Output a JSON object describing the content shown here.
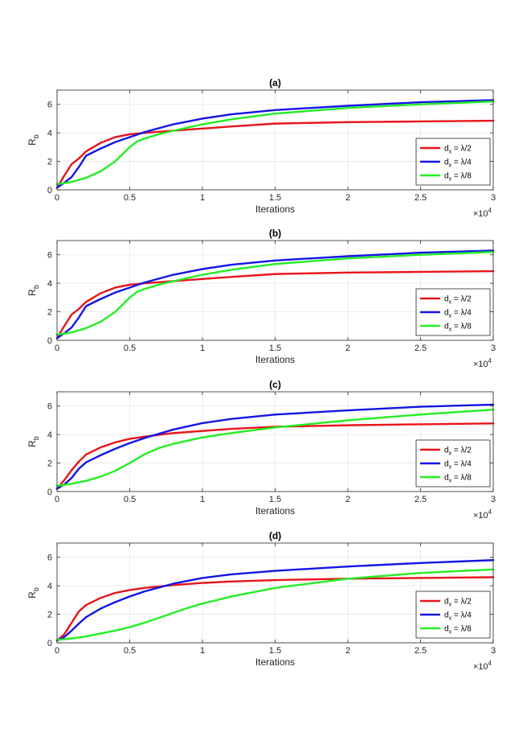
{
  "figure": {
    "xlabel": "Iterations",
    "ylabel": "R",
    "ylabel_sub": "b",
    "exponent_base": "×10",
    "exponent_power": "4"
  },
  "legend_labels": [
    {
      "main": "d",
      "sub": "x",
      "rest": " = λ/2"
    },
    {
      "main": "d",
      "sub": "x",
      "rest": " = λ/4"
    },
    {
      "main": "d",
      "sub": "x",
      "rest": " = λ/8"
    }
  ],
  "colors": {
    "series": [
      "#e8141a",
      "#1414e6",
      "#22ee22"
    ],
    "grid": "#e6e6e6",
    "axis": "#262626"
  },
  "chart_data": [
    {
      "type": "line",
      "title": "(a)",
      "xlabel": "Iterations",
      "ylabel": "R_b",
      "x_multiplier": 10000,
      "xlim": [
        0,
        3
      ],
      "ylim": [
        0,
        7
      ],
      "xticks": [
        0,
        0.5,
        1,
        1.5,
        2,
        2.5,
        3
      ],
      "xtick_labels": [
        "0",
        "0.5",
        "1",
        "1.5",
        "2",
        "2.5",
        "3"
      ],
      "yticks": [
        0,
        2,
        4,
        6
      ],
      "ytick_labels": [
        "0",
        "2",
        "4",
        "6"
      ],
      "grid": true,
      "legend": "bottom-right",
      "series": [
        {
          "name": "dx = λ/2",
          "x": [
            0,
            0.05,
            0.1,
            0.15,
            0.2,
            0.3,
            0.4,
            0.5,
            0.6,
            0.8,
            1.0,
            1.2,
            1.5,
            2.0,
            2.5,
            3.0
          ],
          "y": [
            0.15,
            1.0,
            1.8,
            2.2,
            2.7,
            3.3,
            3.7,
            3.9,
            4.0,
            4.15,
            4.3,
            4.45,
            4.65,
            4.75,
            4.8,
            4.85
          ]
        },
        {
          "name": "dx = λ/4",
          "x": [
            0,
            0.05,
            0.1,
            0.15,
            0.2,
            0.3,
            0.4,
            0.5,
            0.6,
            0.8,
            1.0,
            1.2,
            1.5,
            2.0,
            2.5,
            3.0
          ],
          "y": [
            0.15,
            0.5,
            0.9,
            1.6,
            2.4,
            2.9,
            3.35,
            3.7,
            4.05,
            4.6,
            5.0,
            5.3,
            5.6,
            5.9,
            6.15,
            6.3
          ]
        },
        {
          "name": "dx = λ/8",
          "x": [
            0,
            0.1,
            0.2,
            0.3,
            0.4,
            0.5,
            0.55,
            0.6,
            0.7,
            0.8,
            1.0,
            1.2,
            1.5,
            2.0,
            2.5,
            3.0
          ],
          "y": [
            0.4,
            0.55,
            0.85,
            1.3,
            2.0,
            3.0,
            3.4,
            3.6,
            3.9,
            4.15,
            4.6,
            4.95,
            5.35,
            5.75,
            6.0,
            6.2
          ]
        }
      ]
    },
    {
      "type": "line",
      "title": "(b)",
      "xlabel": "Iterations",
      "ylabel": "R_b",
      "x_multiplier": 10000,
      "xlim": [
        0,
        3
      ],
      "ylim": [
        0,
        7
      ],
      "xticks": [
        0,
        0.5,
        1,
        1.5,
        2,
        2.5,
        3
      ],
      "xtick_labels": [
        "0",
        "0.5",
        "1",
        "1.5",
        "2",
        "2.5",
        "3"
      ],
      "yticks": [
        0,
        2,
        4,
        6
      ],
      "ytick_labels": [
        "0",
        "2",
        "4",
        "6"
      ],
      "grid": true,
      "legend": "bottom-right",
      "series": [
        {
          "name": "dx = λ/2",
          "x": [
            0,
            0.05,
            0.1,
            0.15,
            0.2,
            0.3,
            0.4,
            0.5,
            0.6,
            0.8,
            1.0,
            1.2,
            1.5,
            2.0,
            2.5,
            3.0
          ],
          "y": [
            0.15,
            1.0,
            1.8,
            2.2,
            2.7,
            3.3,
            3.7,
            3.9,
            4.0,
            4.15,
            4.3,
            4.45,
            4.65,
            4.75,
            4.8,
            4.85
          ]
        },
        {
          "name": "dx = λ/4",
          "x": [
            0,
            0.05,
            0.1,
            0.15,
            0.2,
            0.3,
            0.4,
            0.5,
            0.6,
            0.8,
            1.0,
            1.2,
            1.5,
            2.0,
            2.5,
            3.0
          ],
          "y": [
            0.15,
            0.5,
            0.9,
            1.6,
            2.4,
            2.9,
            3.35,
            3.7,
            4.05,
            4.6,
            5.0,
            5.3,
            5.6,
            5.9,
            6.15,
            6.3
          ]
        },
        {
          "name": "dx = λ/8",
          "x": [
            0,
            0.1,
            0.2,
            0.3,
            0.4,
            0.5,
            0.55,
            0.6,
            0.7,
            0.8,
            1.0,
            1.2,
            1.5,
            2.0,
            2.5,
            3.0
          ],
          "y": [
            0.4,
            0.55,
            0.85,
            1.3,
            2.0,
            3.0,
            3.4,
            3.6,
            3.9,
            4.15,
            4.6,
            4.95,
            5.35,
            5.75,
            6.0,
            6.2
          ]
        }
      ]
    },
    {
      "type": "line",
      "title": "(c)",
      "xlabel": "Iterations",
      "ylabel": "R_b",
      "x_multiplier": 10000,
      "xlim": [
        0,
        3
      ],
      "ylim": [
        0,
        7
      ],
      "xticks": [
        0,
        0.5,
        1,
        1.5,
        2,
        2.5,
        3
      ],
      "xtick_labels": [
        "0",
        "0.5",
        "1",
        "1.5",
        "2",
        "2.5",
        "3"
      ],
      "yticks": [
        0,
        2,
        4,
        6
      ],
      "ytick_labels": [
        "0",
        "2",
        "4",
        "6"
      ],
      "grid": true,
      "legend": "bottom-right",
      "series": [
        {
          "name": "dx = λ/2",
          "x": [
            0,
            0.05,
            0.1,
            0.15,
            0.2,
            0.3,
            0.4,
            0.5,
            0.6,
            0.8,
            1.0,
            1.2,
            1.5,
            2.0,
            2.5,
            3.0
          ],
          "y": [
            0.2,
            0.8,
            1.5,
            2.1,
            2.6,
            3.1,
            3.45,
            3.7,
            3.85,
            4.1,
            4.25,
            4.4,
            4.55,
            4.65,
            4.72,
            4.78
          ]
        },
        {
          "name": "dx = λ/4",
          "x": [
            0,
            0.05,
            0.1,
            0.15,
            0.2,
            0.3,
            0.4,
            0.5,
            0.6,
            0.8,
            1.0,
            1.2,
            1.5,
            2.0,
            2.5,
            3.0
          ],
          "y": [
            0.2,
            0.5,
            0.95,
            1.6,
            2.05,
            2.55,
            3.0,
            3.4,
            3.75,
            4.35,
            4.8,
            5.1,
            5.4,
            5.7,
            5.95,
            6.1
          ]
        },
        {
          "name": "dx = λ/8",
          "x": [
            0,
            0.1,
            0.2,
            0.3,
            0.4,
            0.5,
            0.6,
            0.7,
            0.8,
            1.0,
            1.2,
            1.5,
            2.0,
            2.5,
            3.0
          ],
          "y": [
            0.4,
            0.55,
            0.75,
            1.05,
            1.45,
            2.0,
            2.6,
            3.05,
            3.35,
            3.8,
            4.1,
            4.5,
            5.0,
            5.4,
            5.75
          ]
        }
      ]
    },
    {
      "type": "line",
      "title": "(d)",
      "xlabel": "Iterations",
      "ylabel": "R_b",
      "x_multiplier": 10000,
      "xlim": [
        0,
        3
      ],
      "ylim": [
        0,
        7
      ],
      "xticks": [
        0,
        0.5,
        1,
        1.5,
        2,
        2.5,
        3
      ],
      "xtick_labels": [
        "0",
        "0.5",
        "1",
        "1.5",
        "2",
        "2.5",
        "3"
      ],
      "yticks": [
        0,
        2,
        4,
        6
      ],
      "ytick_labels": [
        "0",
        "2",
        "4",
        "6"
      ],
      "grid": true,
      "legend": "bottom-right",
      "series": [
        {
          "name": "dx = λ/2",
          "x": [
            0,
            0.05,
            0.1,
            0.15,
            0.2,
            0.3,
            0.4,
            0.5,
            0.6,
            0.8,
            1.0,
            1.2,
            1.5,
            2.0,
            2.5,
            3.0
          ],
          "y": [
            0.15,
            0.6,
            1.4,
            2.2,
            2.65,
            3.15,
            3.5,
            3.7,
            3.85,
            4.05,
            4.2,
            4.3,
            4.4,
            4.5,
            4.55,
            4.6
          ]
        },
        {
          "name": "dx = λ/4",
          "x": [
            0,
            0.05,
            0.1,
            0.15,
            0.2,
            0.3,
            0.4,
            0.5,
            0.6,
            0.8,
            1.0,
            1.2,
            1.5,
            2.0,
            2.5,
            3.0
          ],
          "y": [
            0.15,
            0.4,
            0.85,
            1.35,
            1.8,
            2.4,
            2.85,
            3.25,
            3.6,
            4.15,
            4.55,
            4.8,
            5.05,
            5.35,
            5.6,
            5.8
          ]
        },
        {
          "name": "dx = λ/8",
          "x": [
            0,
            0.1,
            0.2,
            0.3,
            0.4,
            0.5,
            0.6,
            0.7,
            0.8,
            0.9,
            1.0,
            1.2,
            1.5,
            2.0,
            2.5,
            3.0
          ],
          "y": [
            0.2,
            0.3,
            0.45,
            0.65,
            0.85,
            1.1,
            1.4,
            1.75,
            2.1,
            2.45,
            2.75,
            3.25,
            3.85,
            4.5,
            4.9,
            5.15
          ]
        }
      ]
    }
  ]
}
